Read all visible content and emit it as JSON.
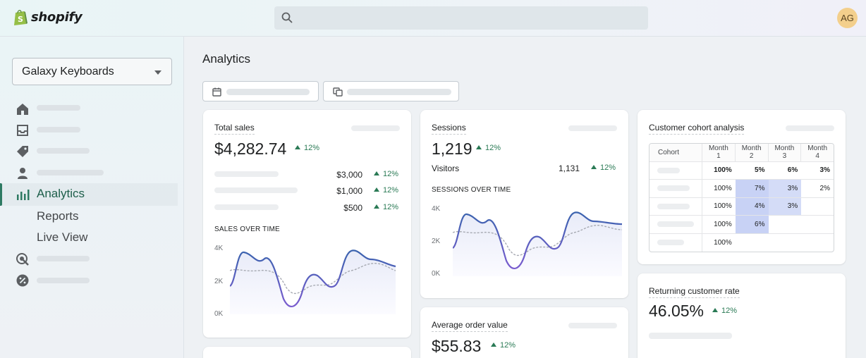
{
  "app": {
    "logo_text": "shopify",
    "avatar_initials": "AG",
    "search": {
      "placeholder": ""
    }
  },
  "sidebar": {
    "store_selector": "Galaxy Keyboards",
    "active_item": "Analytics",
    "sub_items": [
      "Reports",
      "Live View"
    ]
  },
  "main": {
    "title": "Analytics"
  },
  "cards": {
    "total_sales": {
      "title": "Total sales",
      "value": "$4,282.74",
      "change": "12%",
      "rows": [
        {
          "value": "$3,000",
          "change": "12%"
        },
        {
          "value": "$1,000",
          "change": "12%"
        },
        {
          "value": "$500",
          "change": "12%"
        }
      ],
      "chart_title": "SALES OVER TIME",
      "axis": [
        "4K",
        "2K",
        "0K"
      ]
    },
    "sessions": {
      "title": "Sessions",
      "value": "1,219",
      "change": "12%",
      "visitors_label": "Visitors",
      "visitors_value": "1,131",
      "visitors_change": "12%",
      "chart_title": "SESSIONS OVER TIME",
      "axis": [
        "4K",
        "2K",
        "0K"
      ]
    },
    "cohort": {
      "title": "Customer cohort analysis",
      "headers": [
        "Cohort",
        "Month 1",
        "Month 2",
        "Month 3",
        "Month 4"
      ],
      "rows": [
        [
          "100%",
          "5%",
          "6%",
          "3%"
        ],
        [
          "100%",
          "7%",
          "3%",
          "2%"
        ],
        [
          "100%",
          "4%",
          "3%",
          ""
        ],
        [
          "100%",
          "6%",
          "",
          ""
        ],
        [
          "100%",
          "",
          "",
          ""
        ]
      ]
    },
    "aov": {
      "title": "Average order value",
      "value": "$55.83",
      "change": "12%"
    },
    "returning": {
      "title": "Returning customer rate",
      "value": "46.05%",
      "change": "12%"
    }
  },
  "colors": {
    "accent": "#2e7a63",
    "positive": "#2a7a55",
    "chart_line": "#3f64b0",
    "heat_strong": "#c8d2f5",
    "heat_light": "#d4dcf7"
  }
}
